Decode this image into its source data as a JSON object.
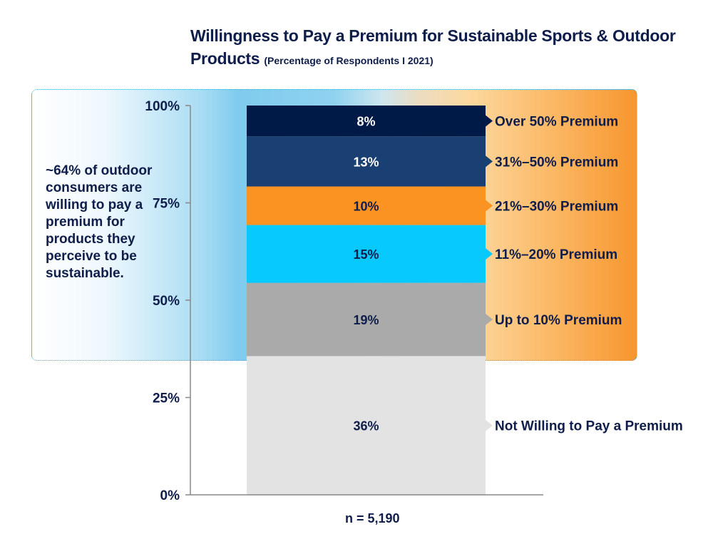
{
  "title": "Willingness to Pay a Premium for Sustainable Sports & Outdoor Products",
  "subtitle": "(Percentage of Respondents I 2021)",
  "annotation": "~64% of outdoor consumers are willing to pay a premium for products they perceive to be sustainable.",
  "sample_size": "n = 5,190",
  "chart_data": {
    "type": "bar",
    "stacked": true,
    "title": "Willingness to Pay a Premium for Sustainable Sports & Outdoor Products",
    "categories": [
      "n = 5,190"
    ],
    "ylim": [
      0,
      100
    ],
    "yticks": [
      "0%",
      "25%",
      "50%",
      "75%",
      "100%"
    ],
    "grid": false,
    "legend": "right",
    "series": [
      {
        "name": "Not Willing to Pay a Premium",
        "values": [
          36
        ],
        "label": "36%",
        "color": "#e3e3e3"
      },
      {
        "name": "Up to 10% Premium",
        "values": [
          19
        ],
        "label": "19%",
        "color": "#aaaaaa"
      },
      {
        "name": "11%–20% Premium",
        "values": [
          15
        ],
        "label": "15%",
        "color": "#08c9fc"
      },
      {
        "name": "21%–30% Premium",
        "values": [
          10
        ],
        "label": "10%",
        "color": "#fb9322"
      },
      {
        "name": "31%–50% Premium",
        "values": [
          13
        ],
        "label": "13%",
        "color": "#1a3f72"
      },
      {
        "name": "Over 50% Premium",
        "values": [
          8
        ],
        "label": "8%",
        "color": "#001a47"
      }
    ]
  }
}
